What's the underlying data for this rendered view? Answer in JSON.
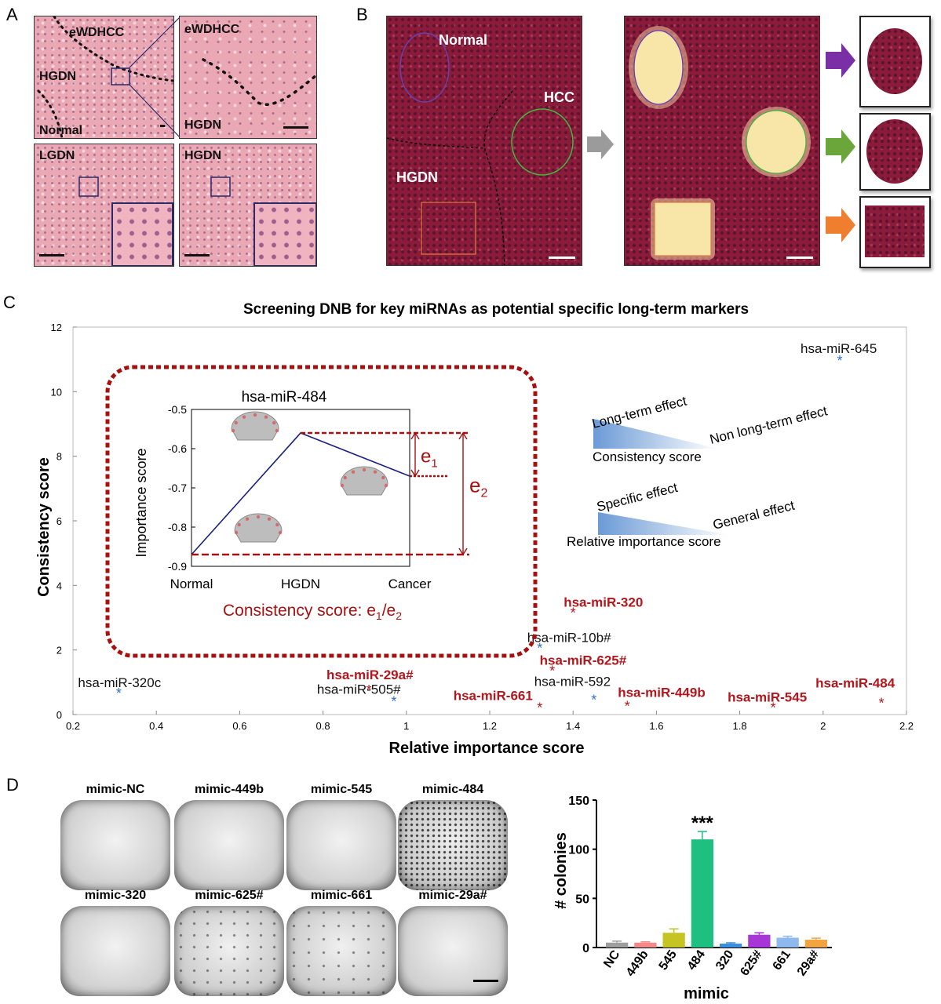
{
  "panel_letters": [
    "A",
    "B",
    "C",
    "D"
  ],
  "panel_a": {
    "tile1_labels": [
      "eWDHCC",
      "HGDN",
      "Normal"
    ],
    "tile2_labels": [
      "eWDHCC",
      "HGDN"
    ],
    "tile3_label": "LGDN",
    "tile4_label": "HGDN"
  },
  "panel_b": {
    "labels": [
      "Normal",
      "HCC",
      "HGDN"
    ],
    "arrow_colors": [
      "#7b2fa6",
      "#6aa63a",
      "#ef7f2e"
    ],
    "circle_colors": [
      "#6a3fb0",
      "#3fb83f",
      "#e07a3a"
    ]
  },
  "chart_data": [
    {
      "type": "scatter",
      "title": "Screening DNB for key miRNAs as potential specific long-term markers",
      "xlabel": "Relative importance score",
      "ylabel": "Consistency score",
      "xlim": [
        0.2,
        2.2
      ],
      "ylim": [
        0,
        12
      ],
      "xticks": [
        0.2,
        0.4,
        0.6,
        0.8,
        1,
        1.2,
        1.4,
        1.6,
        1.8,
        2,
        2.2
      ],
      "xtick_labels": [
        "0.2",
        "0.4",
        "0.6",
        "0.8",
        "1",
        "1.2",
        "1.4",
        "1.6",
        "1.8",
        "2",
        "2.2"
      ],
      "yticks": [
        0,
        2,
        4,
        6,
        8,
        10,
        12
      ],
      "ytick_labels": [
        "0",
        "2",
        "4",
        "6",
        "8",
        "10",
        "12"
      ],
      "series": [
        {
          "color": "#2f6fd1",
          "points": [
            {
              "label": "hsa-miR-645",
              "x": 2.04,
              "y": 11.0
            },
            {
              "label": "hsa-miR-320c",
              "x": 0.31,
              "y": 0.7
            },
            {
              "label": "hsa-miR-505#",
              "x": 0.97,
              "y": 0.45
            },
            {
              "label": "hsa-miR-10b#",
              "x": 1.32,
              "y": 2.1
            },
            {
              "label": "hsa-miR-592",
              "x": 1.45,
              "y": 0.5
            }
          ]
        },
        {
          "color": "#b3161c",
          "points": [
            {
              "label": "hsa-miR-320",
              "x": 1.4,
              "y": 3.2
            },
            {
              "label": "hsa-miR-625#",
              "x": 1.35,
              "y": 1.4
            },
            {
              "label": "hsa-miR-29a#",
              "x": 0.91,
              "y": 0.8
            },
            {
              "label": "hsa-miR-661",
              "x": 1.32,
              "y": 0.25
            },
            {
              "label": "hsa-miR-449b",
              "x": 1.53,
              "y": 0.3
            },
            {
              "label": "hsa-miR-545",
              "x": 1.88,
              "y": 0.25
            },
            {
              "label": "hsa-miR-484",
              "x": 2.14,
              "y": 0.4
            }
          ]
        }
      ],
      "point_marker": "*",
      "legend_notes": {
        "long_term": "Long-term effect",
        "non_long_term": "Non long-term effect",
        "consistency": "Consistency score",
        "specific": "Specific effect",
        "general": "General effect",
        "relative_importance": "Relative importance score"
      }
    },
    {
      "type": "line",
      "title": "hsa-miR-484",
      "xlabel": "",
      "ylabel": "Importance score",
      "categories": [
        "Normal",
        "HGDN",
        "Cancer"
      ],
      "values": [
        -0.87,
        -0.56,
        -0.67
      ],
      "ylim": [
        -0.9,
        -0.5
      ],
      "yticks": [
        -0.9,
        -0.8,
        -0.7,
        -0.6,
        -0.5
      ],
      "ytick_labels": [
        "-0.9",
        "-0.8",
        "-0.7",
        "-0.6",
        "-0.5"
      ],
      "annotations": {
        "e1": "e",
        "e1_sub": "1",
        "e2": "e",
        "e2_sub": "2",
        "caption_prefix": "Consistency score: ",
        "caption_e1": "e",
        "caption_e1_sub": "1",
        "caption_slash": "/",
        "caption_e2": "e",
        "caption_e2_sub": "2"
      }
    },
    {
      "type": "bar",
      "title": "",
      "xlabel": "mimic",
      "ylabel": "# colonies",
      "categories": [
        "NC",
        "449b",
        "545",
        "484",
        "320",
        "625#",
        "661",
        "29a#"
      ],
      "values": [
        5,
        5,
        15,
        110,
        4,
        13,
        10,
        8
      ],
      "errors": [
        1.5,
        0.8,
        4,
        8,
        0.8,
        2,
        1.5,
        1.5
      ],
      "colors": [
        "#9e9e9e",
        "#f28a8a",
        "#c6c422",
        "#1fbf82",
        "#3a8fe0",
        "#a637d6",
        "#8fb8ef",
        "#f2a441"
      ],
      "ylim": [
        0,
        150
      ],
      "yticks": [
        0,
        50,
        100,
        150
      ],
      "ytick_labels": [
        "0",
        "50",
        "100",
        "150"
      ],
      "significance": "***",
      "significance_index": 3
    }
  ],
  "panel_d": {
    "dish_labels": [
      "mimic-NC",
      "mimic-449b",
      "mimic-545",
      "mimic-484",
      "mimic-320",
      "mimic-625#",
      "mimic-661",
      "mimic-29a#"
    ]
  }
}
